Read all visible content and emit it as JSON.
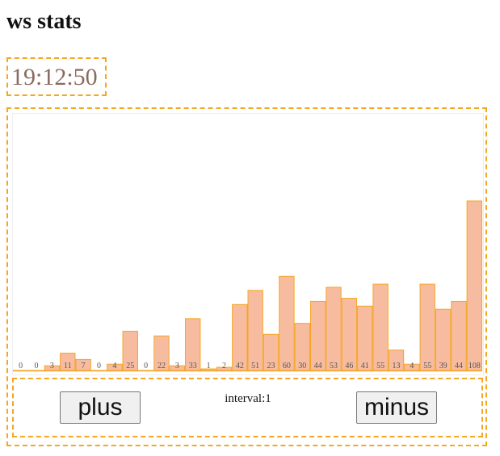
{
  "header": {
    "title": "ws stats"
  },
  "clock": {
    "time": "19:12:50"
  },
  "controls": {
    "plus_label": "plus",
    "minus_label": "minus",
    "interval_text": "interval:1"
  },
  "colors": {
    "accent_dashed": "#f5a623",
    "bar_fill": "#f7bca0",
    "bar_stroke": "#f5a623"
  },
  "chart_data": {
    "type": "bar",
    "values": [
      0,
      0,
      3,
      11,
      7,
      0,
      4,
      25,
      0,
      22,
      3,
      33,
      1,
      2,
      42,
      51,
      23,
      60,
      30,
      44,
      53,
      46,
      41,
      55,
      13,
      4,
      55,
      39,
      44,
      108
    ],
    "ylim": [
      0,
      108
    ],
    "grid": false,
    "title": "",
    "xlabel": "",
    "ylabel": ""
  }
}
